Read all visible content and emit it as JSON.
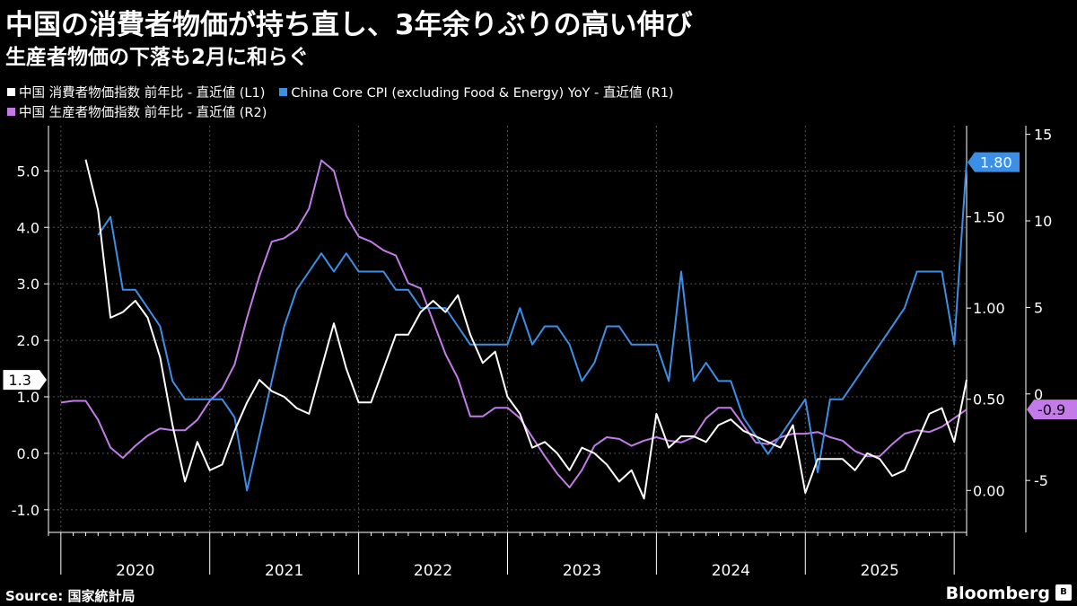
{
  "header": {
    "title": "中国の消費者物価が持ち直し、3年余りぶりの高い伸び",
    "subtitle": "生産者物価の下落も2月に和らぐ"
  },
  "footer": {
    "source": "Source: 国家統計局",
    "brand": "Bloomberg",
    "brand_icon": "B"
  },
  "colors": {
    "cpi": "#ffffff",
    "core": "#3b8fe6",
    "ppi": "#c27be8",
    "grid": "#555555",
    "axis": "#ffffff"
  },
  "chart_data": {
    "type": "line",
    "x_start": "2019-12",
    "x_end": "2026-02",
    "year_labels": [
      "2020",
      "2021",
      "2022",
      "2023",
      "2024",
      "2025"
    ],
    "axes": {
      "L1": {
        "min": -1.4,
        "max": 5.8,
        "ticks": [
          "-1.0",
          "0.0",
          "1.0",
          "2.0",
          "3.0",
          "4.0",
          "5.0"
        ],
        "tick_values": [
          -1,
          0,
          1,
          2,
          3,
          4,
          5
        ]
      },
      "R1": {
        "min": -0.23,
        "max": 2.0,
        "ticks": [
          "0.00",
          "0.50",
          "1.00",
          "1.50"
        ],
        "tick_values": [
          0,
          0.5,
          1.0,
          1.5
        ]
      },
      "R2": {
        "min": -8,
        "max": 15.5,
        "ticks": [
          "-5",
          "0",
          "5",
          "10",
          "15"
        ],
        "tick_values": [
          -5,
          0,
          5,
          10,
          15
        ]
      }
    },
    "series": [
      {
        "name": "中国 消費者物価指数 前年比 - 直近値 (L1)",
        "axis": "L1",
        "color_key": "cpi",
        "last_label": "1.3",
        "values": [
          5.2,
          4.3,
          2.4,
          2.5,
          2.7,
          2.4,
          1.7,
          0.5,
          -0.5,
          0.2,
          -0.3,
          -0.2,
          0.4,
          0.9,
          1.3,
          1.1,
          1.0,
          0.8,
          0.7,
          1.5,
          2.3,
          1.5,
          0.9,
          0.9,
          1.5,
          2.1,
          2.1,
          2.5,
          2.7,
          2.5,
          2.8,
          2.1,
          1.6,
          1.8,
          1.0,
          0.7,
          0.1,
          0.2,
          0.0,
          -0.3,
          0.1,
          0.0,
          -0.2,
          -0.5,
          -0.3,
          -0.8,
          0.7,
          0.1,
          0.3,
          0.3,
          0.2,
          0.5,
          0.6,
          0.4,
          0.3,
          0.2,
          0.1,
          0.5,
          -0.7,
          -0.1,
          -0.1,
          -0.1,
          -0.3,
          0.0,
          -0.1,
          -0.4,
          -0.3,
          0.2,
          0.7,
          0.8,
          0.2,
          1.3
        ]
      },
      {
        "name": "China Core CPI (excluding Food & Energy) YoY - 直近値 (R1)",
        "axis": "R1",
        "color_key": "core",
        "last_label": "1.80",
        "values": [
          1.4,
          1.5,
          1.1,
          1.1,
          1.0,
          0.9,
          0.6,
          0.5,
          0.5,
          0.5,
          0.5,
          0.4,
          0.0,
          0.3,
          0.6,
          0.9,
          1.1,
          1.2,
          1.3,
          1.2,
          1.3,
          1.2,
          1.2,
          1.2,
          1.1,
          1.1,
          1.0,
          1.0,
          1.0,
          0.9,
          0.8,
          0.8,
          0.8,
          0.8,
          1.0,
          0.8,
          0.9,
          0.9,
          0.8,
          0.6,
          0.7,
          0.9,
          0.9,
          0.8,
          0.8,
          0.8,
          0.6,
          1.2,
          0.6,
          0.7,
          0.6,
          0.6,
          0.4,
          0.3,
          0.2,
          0.3,
          0.4,
          0.5,
          0.1,
          0.5,
          0.5,
          0.6,
          0.7,
          0.8,
          0.9,
          1.0,
          1.2,
          1.2,
          1.2,
          0.8,
          1.8
        ]
      },
      {
        "name": "中国 生産者物価指数 前年比 - 直近値 (R2)",
        "axis": "R2",
        "color_key": "ppi",
        "last_label": "-0.9",
        "values": [
          -0.5,
          -0.4,
          -0.4,
          -1.5,
          -3.1,
          -3.7,
          -3.0,
          -2.4,
          -2.0,
          -2.1,
          -2.1,
          -1.5,
          -0.4,
          0.3,
          1.7,
          4.4,
          6.8,
          8.8,
          9.0,
          9.5,
          10.7,
          13.5,
          12.9,
          10.3,
          9.1,
          8.8,
          8.3,
          8.0,
          6.4,
          6.1,
          4.2,
          2.3,
          0.9,
          -1.3,
          -1.3,
          -0.8,
          -0.8,
          -1.4,
          -2.5,
          -3.6,
          -4.6,
          -5.4,
          -4.4,
          -3.0,
          -2.5,
          -2.6,
          -3.0,
          -2.7,
          -2.5,
          -2.7,
          -2.8,
          -2.5,
          -1.4,
          -0.8,
          -0.8,
          -1.8,
          -2.8,
          -2.9,
          -2.5,
          -2.3,
          -2.3,
          -2.2,
          -2.5,
          -2.7,
          -3.3,
          -3.6,
          -3.6,
          -2.9,
          -2.3,
          -2.1,
          -2.2,
          -1.9,
          -1.4,
          -0.9
        ]
      }
    ]
  }
}
